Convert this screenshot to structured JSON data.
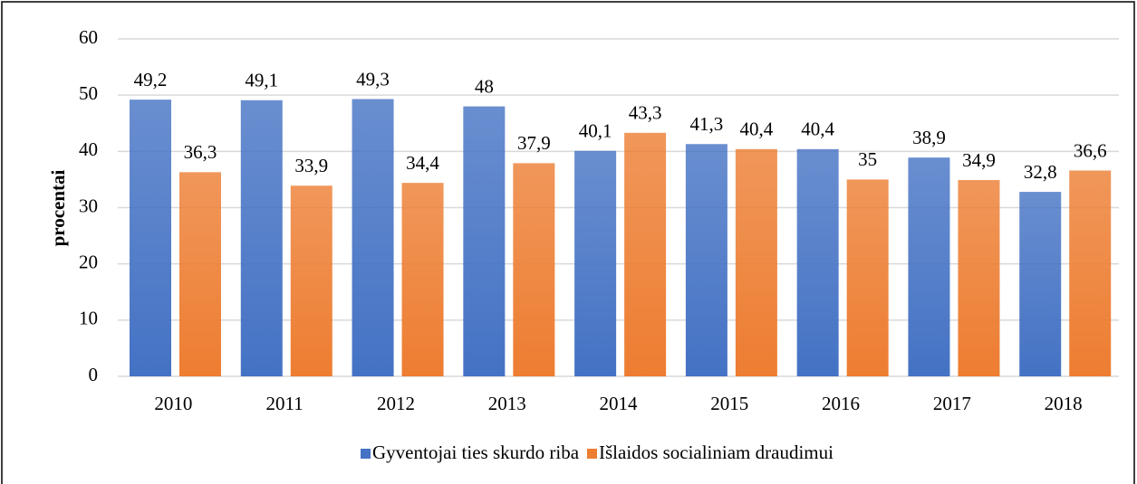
{
  "chart_data": {
    "type": "bar",
    "y_axis_label": "procentai",
    "categories": [
      "2010",
      "2011",
      "2012",
      "2013",
      "2014",
      "2015",
      "2016",
      "2017",
      "2018"
    ],
    "series": [
      {
        "name": "Gyventojai ties skurdo riba",
        "color": "#4472c4",
        "values": [
          49.2,
          49.1,
          49.3,
          48,
          40.1,
          41.3,
          40.4,
          38.9,
          32.8
        ],
        "value_labels": [
          "49,2",
          "49,1",
          "49,3",
          "48",
          "40,1",
          "41,3",
          "40,4",
          "38,9",
          "32,8"
        ]
      },
      {
        "name": "Išlaidos socialiniam draudimui",
        "color": "#ed7d31",
        "values": [
          36.3,
          33.9,
          34.4,
          37.9,
          43.3,
          40.4,
          35,
          34.9,
          36.6
        ],
        "value_labels": [
          "36,3",
          "33,9",
          "34,4",
          "37,9",
          "43,3",
          "40,4",
          "35",
          "34,9",
          "36,6"
        ]
      }
    ],
    "ylim": [
      0,
      60
    ],
    "yticks": [
      0,
      10,
      20,
      30,
      40,
      50,
      60
    ],
    "grid": true,
    "legend": "bottom"
  }
}
